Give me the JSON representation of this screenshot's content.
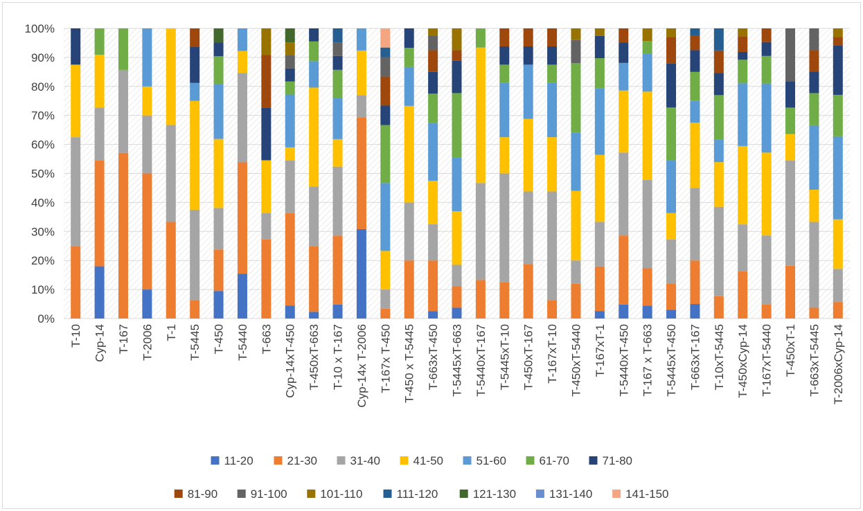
{
  "chart_data": {
    "type": "bar",
    "stacked": "percent",
    "title": "",
    "xlabel": "",
    "ylabel": "",
    "ylim": [
      0,
      100
    ],
    "y_ticks": [
      "0%",
      "10%",
      "20%",
      "30%",
      "40%",
      "50%",
      "60%",
      "70%",
      "80%",
      "90%",
      "100%"
    ],
    "grid": true,
    "legend_position": "bottom",
    "categories": [
      "T-10",
      "Cyp-14",
      "T-167",
      "T-2006",
      "T-1",
      "T-5445",
      "T-450",
      "T-5440",
      "T-663",
      "Cyp-14xT-450",
      "T-450xT-663",
      "T-10 x T-167",
      "Cyp-14x T-2006",
      "T-167x T-450",
      "T-450 x T-5445",
      "T-663xT-450",
      "T-5445xT-663",
      "T-5440xT-167",
      "T-5445xT-10",
      "T-450xT-167",
      "T-167xT-10",
      "T-450xT-5440",
      "T-167xT-1",
      "T-5440xT-450",
      "T-167 x T-663",
      "T-5445xT-450",
      "T-663xT-167",
      "T-10xT-5445",
      "T-450xCyp-14",
      "T-167xT-5440",
      "T-450xT-1",
      "T-663xT-5445",
      "T-2006xCyp-14"
    ],
    "series": [
      {
        "name": "11-20",
        "color": "#4472c4",
        "values": [
          0,
          18,
          0,
          10,
          0,
          0,
          9.5,
          14.3,
          0,
          4.5,
          2.3,
          4.8,
          30.8,
          0,
          0,
          2.5,
          3.7,
          0,
          0,
          0,
          0,
          0,
          2.6,
          4.8,
          4.4,
          3,
          5,
          0,
          0,
          0,
          0,
          0,
          0
        ]
      },
      {
        "name": "21-30",
        "color": "#ed7d31",
        "values": [
          25,
          36.5,
          57.1,
          40,
          33.3,
          6.3,
          14.3,
          35.7,
          27.3,
          31.8,
          22.7,
          23.8,
          38.5,
          3.4,
          20,
          17.5,
          7.4,
          13.3,
          12.5,
          18.8,
          6.3,
          12,
          15.4,
          23.8,
          13,
          9.1,
          15,
          7.7,
          16.2,
          4.8,
          18.2,
          3.7,
          5.7
        ]
      },
      {
        "name": "31-40",
        "color": "#a5a5a5",
        "values": [
          37.5,
          18.2,
          28.6,
          20,
          33.4,
          31.2,
          14.3,
          28.6,
          9.1,
          18.2,
          20.5,
          23.8,
          7.7,
          6.6,
          20,
          12.5,
          7.4,
          33.4,
          37.5,
          25,
          37.5,
          8,
          15.4,
          28.6,
          30.4,
          15.2,
          25,
          30.8,
          16.2,
          23.8,
          36.3,
          29.6,
          11.4
        ]
      },
      {
        "name": "41-50",
        "color": "#ffc000",
        "values": [
          25,
          18.2,
          0,
          10,
          33.3,
          37.5,
          23.8,
          7.1,
          18.2,
          4.5,
          34.1,
          9.5,
          15.4,
          13.3,
          33.3,
          15,
          18.5,
          46.7,
          12.5,
          25,
          18.7,
          24,
          23.1,
          21.4,
          30.4,
          9.1,
          22.5,
          15.4,
          27,
          28.6,
          9.1,
          11.1,
          17.1
        ]
      },
      {
        "name": "51-60",
        "color": "#5b9bd5",
        "values": [
          0,
          0,
          0,
          20,
          0,
          6.2,
          19,
          7.2,
          0,
          18.2,
          9.1,
          14.3,
          7.6,
          23.4,
          13.4,
          20,
          18.5,
          0,
          18.8,
          18.7,
          18.8,
          20,
          23.1,
          9.5,
          13.1,
          18.2,
          7.5,
          7.7,
          21.6,
          23.8,
          0,
          22.2,
          28.6
        ]
      },
      {
        "name": "61-70",
        "color": "#70ad47",
        "values": [
          0,
          9.1,
          14.3,
          0,
          0,
          0,
          9.5,
          0,
          0,
          4.5,
          6.8,
          9.6,
          0,
          20,
          6.6,
          10,
          22.2,
          6.6,
          6.2,
          0,
          6.2,
          24,
          10.3,
          0,
          4.4,
          18.2,
          10,
          15.4,
          8.1,
          9.5,
          9.1,
          11.1,
          14.3
        ]
      },
      {
        "name": "71-80",
        "color": "#264478",
        "values": [
          12.5,
          0,
          0,
          0,
          0,
          12.5,
          4.8,
          0,
          18.2,
          4.5,
          4.5,
          4.8,
          0,
          6.7,
          6.7,
          7.5,
          11.1,
          0,
          6.3,
          6.3,
          6.3,
          0,
          7.7,
          7.1,
          0,
          15.2,
          7.5,
          7.7,
          2.7,
          4.8,
          9.1,
          7.4,
          17.1
        ]
      },
      {
        "name": "81-90",
        "color": "#9e480e",
        "values": [
          0,
          0,
          0,
          0,
          0,
          6.3,
          0,
          0,
          18.2,
          0,
          0,
          0,
          0,
          10,
          0,
          7.5,
          3.7,
          0,
          6.2,
          6.2,
          6.2,
          0,
          0,
          4.8,
          0,
          9.1,
          5,
          7.7,
          5.4,
          4.7,
          0,
          7.4,
          2.9
        ]
      },
      {
        "name": "91-100",
        "color": "#636363",
        "values": [
          0,
          0,
          0,
          0,
          0,
          0,
          0,
          0,
          0,
          4.5,
          0,
          4.7,
          0,
          6.7,
          0,
          5,
          0,
          0,
          0,
          0,
          0,
          8,
          0,
          0,
          0,
          0,
          0,
          0,
          0,
          0,
          18.2,
          7.5,
          0
        ]
      },
      {
        "name": "101-110",
        "color": "#997300",
        "values": [
          0,
          0,
          0,
          0,
          0,
          0,
          0,
          0,
          9.1,
          4.5,
          0,
          0,
          0,
          0,
          0,
          2.5,
          7.5,
          0,
          0,
          0,
          0,
          4,
          2.6,
          0,
          4.3,
          3,
          0,
          0,
          2.7,
          0,
          0,
          0,
          2.9
        ]
      },
      {
        "name": "111-120",
        "color": "#255e91",
        "values": [
          0,
          0,
          0,
          0,
          0,
          0,
          0,
          0,
          0,
          0,
          0,
          4.8,
          0,
          3.3,
          0,
          0,
          0,
          0,
          0,
          0,
          0,
          0,
          0,
          0,
          0,
          0,
          2.5,
          7.6,
          0,
          0,
          0,
          0,
          0
        ]
      },
      {
        "name": "121-130",
        "color": "#43682b",
        "values": [
          0,
          0,
          0,
          0,
          0,
          0,
          4.8,
          0,
          0,
          4.8,
          0,
          0,
          0,
          0,
          0,
          0,
          0,
          0,
          0,
          0,
          0,
          0,
          0,
          0,
          0,
          0,
          0,
          0,
          0,
          0,
          0,
          0,
          0
        ]
      },
      {
        "name": "131-140",
        "color": "#698ed0",
        "values": [
          0,
          0,
          0,
          0,
          0,
          0,
          0,
          0,
          0,
          0,
          0,
          0,
          0,
          0,
          0,
          0,
          0,
          0,
          0,
          0,
          0,
          0,
          0,
          0,
          0,
          0,
          0,
          0,
          0,
          0,
          0,
          0,
          0
        ]
      },
      {
        "name": "141-150",
        "color": "#f4a582",
        "values": [
          0,
          0,
          0,
          0,
          0,
          0,
          0,
          0,
          0,
          0,
          0,
          0,
          0,
          6.6,
          0,
          0,
          0,
          0,
          0,
          0,
          0,
          0,
          0,
          0,
          0,
          0,
          0,
          0,
          0,
          0,
          0,
          0,
          0
        ]
      }
    ]
  }
}
